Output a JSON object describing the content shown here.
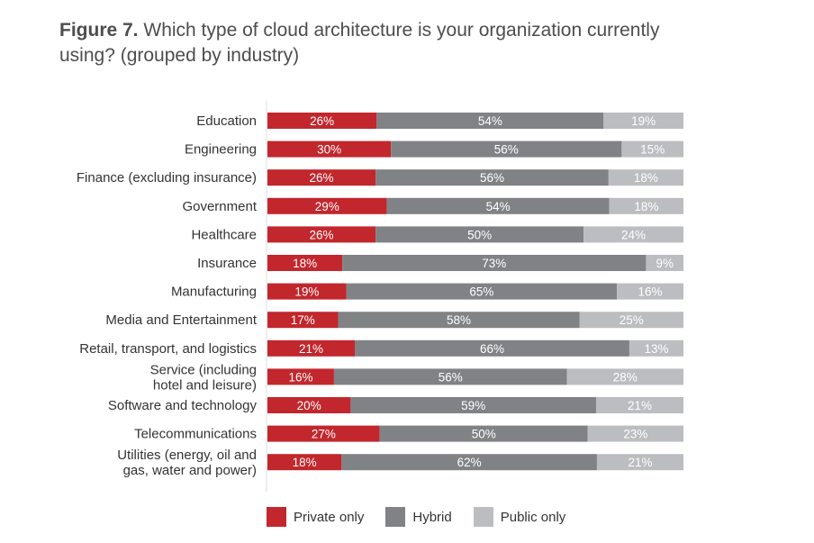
{
  "title": {
    "prefix": "Figure 7.",
    "text": "Which type of cloud architecture is your organization currently using? (grouped by industry)"
  },
  "colors": {
    "private": "#c1272d",
    "hybrid": "#808285",
    "public": "#bcbdc0",
    "axis": "#dcdcdc"
  },
  "legend": {
    "private": "Private only",
    "hybrid": "Hybrid",
    "public": "Public only"
  },
  "chart_data": {
    "type": "bar",
    "orientation": "horizontal",
    "stacked": true,
    "title": "Which type of cloud architecture is your organization currently using? (grouped by industry)",
    "xlabel": "",
    "ylabel": "",
    "unit": "%",
    "legend_position": "bottom",
    "categories": [
      [
        "Education"
      ],
      [
        "Engineering"
      ],
      [
        "Finance (excluding insurance)"
      ],
      [
        "Government"
      ],
      [
        "Healthcare"
      ],
      [
        "Insurance"
      ],
      [
        "Manufacturing"
      ],
      [
        "Media and Entertainment"
      ],
      [
        "Retail, transport, and logistics"
      ],
      [
        "Service (including",
        "hotel and leisure)"
      ],
      [
        "Software and technology"
      ],
      [
        "Telecommunications"
      ],
      [
        "Utilities (energy, oil and",
        "gas, water and power)"
      ]
    ],
    "series": [
      {
        "name": "Private only",
        "values": [
          26,
          30,
          26,
          29,
          26,
          18,
          19,
          17,
          21,
          16,
          20,
          27,
          18
        ]
      },
      {
        "name": "Hybrid",
        "values": [
          54,
          56,
          56,
          54,
          50,
          73,
          65,
          58,
          66,
          56,
          59,
          50,
          62
        ]
      },
      {
        "name": "Public only",
        "values": [
          19,
          15,
          18,
          18,
          24,
          9,
          16,
          25,
          13,
          28,
          21,
          23,
          21
        ]
      }
    ]
  }
}
